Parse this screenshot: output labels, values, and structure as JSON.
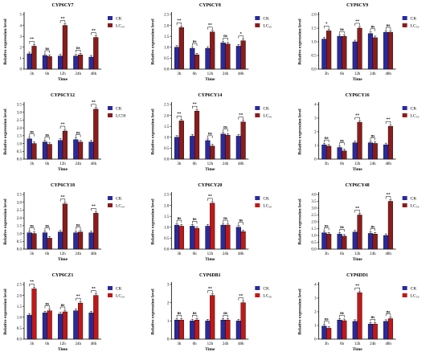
{
  "common": {
    "categories": [
      "3h",
      "6h",
      "12h",
      "24h",
      "48h"
    ],
    "xlabel": "Time",
    "ylabel": "Relative expression level",
    "colors": {
      "CK": "#2a2a9c",
      "LC50": "#8b1c1c",
      "LC50_alt": "#c01818"
    }
  },
  "chart_data": [
    {
      "type": "bar",
      "title": "CYP6CY7",
      "ylim": [
        0,
        5
      ],
      "yticks": [
        0,
        1,
        2,
        3,
        4,
        5
      ],
      "legend": [
        "CK",
        "LC₅₀"
      ],
      "lc_color": "#8b1c1c",
      "series": [
        {
          "name": "CK",
          "values": [
            1.4,
            1.25,
            1.2,
            1.2,
            1.1
          ]
        },
        {
          "name": "LC₅₀",
          "values": [
            2.1,
            1.15,
            4.0,
            1.3,
            2.9
          ]
        }
      ],
      "sig": [
        "**",
        "ns",
        "**",
        "ns",
        "**"
      ]
    },
    {
      "type": "bar",
      "title": "CYP6CY8",
      "ylim": [
        0,
        2.5
      ],
      "yticks": [
        0.0,
        0.5,
        1.0,
        1.5,
        2.0,
        2.5
      ],
      "legend": [
        "CK",
        "LC₅₀"
      ],
      "lc_color": "#8b1c1c",
      "series": [
        {
          "name": "CK",
          "values": [
            1.0,
            0.95,
            0.95,
            1.2,
            1.05
          ]
        },
        {
          "name": "LC₅₀",
          "values": [
            1.9,
            0.65,
            1.7,
            1.15,
            1.3
          ]
        }
      ],
      "sig": [
        "**",
        "ns",
        "**",
        "ns",
        "*"
      ]
    },
    {
      "type": "bar",
      "title": "CYP6CY9",
      "ylim": [
        0,
        2.0
      ],
      "yticks": [
        0.0,
        0.5,
        1.0,
        1.5,
        2.0
      ],
      "legend": [
        "CK",
        "LC₅₀"
      ],
      "lc_color": "#8b1c1c",
      "series": [
        {
          "name": "CK",
          "values": [
            1.1,
            1.2,
            1.0,
            1.3,
            1.35
          ]
        },
        {
          "name": "LC₅₀",
          "values": [
            1.4,
            1.2,
            1.5,
            1.15,
            1.35
          ]
        }
      ],
      "sig": [
        "*",
        "ns",
        "**",
        "ns",
        "ns"
      ]
    },
    {
      "type": "bar",
      "title": "CYP6CY12",
      "ylim": [
        0,
        3.5
      ],
      "yticks": [
        0.0,
        0.5,
        1.0,
        1.5,
        2.0,
        2.5,
        3.0,
        3.5
      ],
      "legend": [
        "CK",
        "LC50"
      ],
      "lc_color": "#8b1c1c",
      "series": [
        {
          "name": "CK",
          "values": [
            1.3,
            1.1,
            1.2,
            1.25,
            1.1
          ]
        },
        {
          "name": "LC50",
          "values": [
            1.0,
            0.95,
            1.8,
            1.1,
            3.2
          ]
        }
      ],
      "sig": [
        "ns",
        "ns",
        "**",
        "ns",
        "**"
      ]
    },
    {
      "type": "bar",
      "title": "CYP6CY14",
      "ylim": [
        0,
        2.5
      ],
      "yticks": [
        0.0,
        0.5,
        1.0,
        1.5,
        2.0,
        2.5
      ],
      "legend": [
        "CK",
        "LC₅₀"
      ],
      "lc_color": "#8b1c1c",
      "series": [
        {
          "name": "CK",
          "values": [
            1.0,
            1.05,
            0.85,
            1.15,
            1.05
          ]
        },
        {
          "name": "LC₅₀",
          "values": [
            1.75,
            2.2,
            0.6,
            1.1,
            1.7
          ]
        }
      ],
      "sig": [
        "**",
        "**",
        "ns",
        "ns",
        "**"
      ]
    },
    {
      "type": "bar",
      "title": "CYP6CY16",
      "ylim": [
        0,
        4
      ],
      "yticks": [
        0,
        1,
        2,
        3,
        4
      ],
      "legend": [
        "CK",
        "LC₅₀"
      ],
      "lc_color": "#8b1c1c",
      "series": [
        {
          "name": "CK",
          "values": [
            1.05,
            0.85,
            1.2,
            1.2,
            1.05
          ]
        },
        {
          "name": "LC₅₀",
          "values": [
            0.95,
            0.6,
            2.7,
            1.15,
            2.4
          ]
        }
      ],
      "sig": [
        "ns",
        "ns",
        "**",
        "ns",
        "**"
      ]
    },
    {
      "type": "bar",
      "title": "CYP6CY18",
      "ylim": [
        0,
        3.5
      ],
      "yticks": [
        0.0,
        0.5,
        1.0,
        1.5,
        2.0,
        2.5,
        3.0,
        3.5
      ],
      "legend": [
        "CK",
        "LC₅₀"
      ],
      "lc_color": "#8b1c1c",
      "series": [
        {
          "name": "CK",
          "values": [
            1.05,
            1.05,
            1.1,
            1.05,
            1.05
          ]
        },
        {
          "name": "LC₅₀",
          "values": [
            1.0,
            0.7,
            2.9,
            1.1,
            2.3
          ]
        }
      ],
      "sig": [
        "ns",
        "ns",
        "**",
        "ns",
        "**"
      ]
    },
    {
      "type": "bar",
      "title": "CYP6CY20",
      "ylim": [
        0,
        2.5
      ],
      "yticks": [
        0.0,
        0.5,
        1.0,
        1.5,
        2.0,
        2.5
      ],
      "legend": [
        "CK",
        "LC₅₀"
      ],
      "lc_color": "#c01818",
      "series": [
        {
          "name": "CK",
          "values": [
            1.1,
            1.05,
            1.05,
            1.1,
            1.0
          ]
        },
        {
          "name": "LC₅₀",
          "values": [
            1.05,
            0.95,
            2.1,
            1.1,
            0.8
          ]
        }
      ],
      "sig": [
        "ns",
        "ns",
        "**",
        "ns",
        "ns"
      ]
    },
    {
      "type": "bar",
      "title": "CYP6CY48",
      "ylim": [
        0,
        4.0
      ],
      "yticks": [
        0.0,
        0.5,
        1.0,
        1.5,
        2.0,
        2.5,
        3.0,
        3.5,
        4.0
      ],
      "legend": [
        "CK",
        "LC₅₀"
      ],
      "lc_color": "#8b1c1c",
      "series": [
        {
          "name": "CK",
          "values": [
            1.2,
            1.1,
            1.25,
            1.15,
            1.0
          ]
        },
        {
          "name": "LC₅₀",
          "values": [
            1.1,
            0.95,
            2.5,
            1.1,
            3.5
          ]
        }
      ],
      "sig": [
        "ns",
        "ns",
        "**",
        "ns",
        "**"
      ]
    },
    {
      "type": "bar",
      "title": "CYP6CZ1",
      "ylim": [
        0,
        2.5
      ],
      "yticks": [
        0.0,
        0.5,
        1.0,
        1.5,
        2.0,
        2.5
      ],
      "legend": [
        "CK",
        "LC₅₀"
      ],
      "lc_color": "#c01818",
      "series": [
        {
          "name": "CK",
          "values": [
            1.1,
            1.2,
            1.15,
            1.3,
            1.2
          ]
        },
        {
          "name": "LC₅₀",
          "values": [
            2.3,
            1.3,
            1.25,
            1.65,
            2.0
          ]
        }
      ],
      "sig": [
        "**",
        "ns",
        "ns",
        "**",
        "**"
      ]
    },
    {
      "type": "bar",
      "title": "CYP6DB1",
      "ylim": [
        0,
        3
      ],
      "yticks": [
        0,
        1,
        2,
        3
      ],
      "legend": [
        "CK",
        "LC₅₀"
      ],
      "lc_color": "#c01818",
      "series": [
        {
          "name": "CK",
          "values": [
            1.05,
            1.0,
            1.0,
            1.05,
            1.0
          ]
        },
        {
          "name": "LC₅₀",
          "values": [
            1.05,
            1.05,
            2.4,
            1.05,
            2.0
          ]
        }
      ],
      "sig": [
        "ns",
        "ns",
        "**",
        "ns",
        "**"
      ]
    },
    {
      "type": "bar",
      "title": "CYP6DD1",
      "ylim": [
        0,
        4
      ],
      "yticks": [
        0,
        1,
        2,
        3,
        4
      ],
      "legend": [
        "CK",
        "LC₅₀"
      ],
      "lc_color": "#c01818",
      "series": [
        {
          "name": "CK",
          "values": [
            0.95,
            1.4,
            1.3,
            1.1,
            1.3
          ]
        },
        {
          "name": "LC₅₀",
          "values": [
            0.8,
            1.35,
            3.4,
            1.1,
            1.5
          ]
        }
      ],
      "sig": [
        "ns",
        "ns",
        "**",
        "ns",
        "ns"
      ]
    }
  ]
}
